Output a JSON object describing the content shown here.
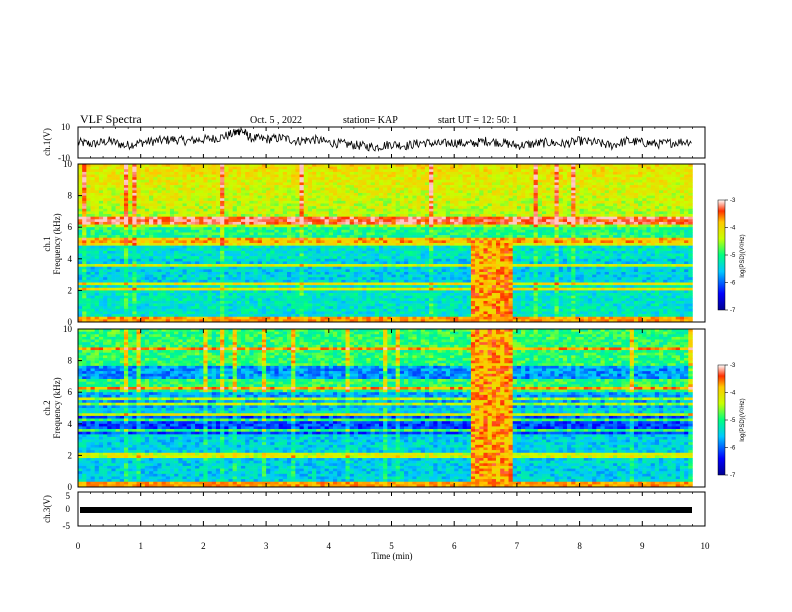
{
  "header": {
    "title": "VLF Spectra",
    "date": "Oct. 5  , 2022",
    "station": "station= KAP",
    "start": "start  UT  =   12: 50: 1"
  },
  "chart_data": [
    {
      "type": "line",
      "panel": "ch1-waveform",
      "ylabel": "ch.1(V)",
      "ylim": [
        -10,
        10
      ],
      "yticks": [
        "10",
        "-10"
      ],
      "xlim": [
        0,
        10
      ],
      "series": [
        {
          "x": [
            0,
            0.25,
            0.5,
            0.75,
            1.0,
            1.25,
            1.5,
            1.75,
            2.0,
            2.25,
            2.5,
            2.6,
            2.75,
            3.0,
            3.25,
            3.5,
            3.75,
            4.0,
            4.25,
            4.5,
            4.75,
            5.0,
            5.25,
            5.5,
            5.75,
            6.0,
            6.25,
            6.5,
            6.75,
            7.0,
            7.25,
            7.5,
            7.75,
            8.0,
            8.25,
            8.5,
            8.75,
            9.0,
            9.25,
            9.5,
            9.8
          ],
          "y": [
            0,
            -1,
            1,
            -2,
            0,
            1,
            2,
            1,
            2,
            3,
            6,
            8,
            3,
            2,
            3,
            1,
            2,
            0,
            -1,
            -2,
            -3,
            -1,
            -2,
            0,
            -1,
            0,
            -1,
            1,
            0,
            -2,
            -1,
            0,
            -1,
            1,
            0,
            -2,
            1,
            0,
            -1,
            0,
            1
          ]
        }
      ]
    },
    {
      "type": "heatmap",
      "panel": "ch1-spectrogram",
      "ylabel": "ch.1\nFrequency  (kHz)",
      "ylim": [
        0,
        10
      ],
      "yticks": [
        "0",
        "2",
        "4",
        "6",
        "8",
        "10"
      ],
      "xlim": [
        0,
        10
      ],
      "colorbar": {
        "label": "log(PSD)(V²/Hz)",
        "range": [
          -7,
          -3
        ],
        "ticks": [
          "-3",
          "-4",
          "-5",
          "-6",
          "-7"
        ]
      },
      "features": {
        "burst_time_min": [
          6.25,
          6.95
        ],
        "burst_band_khz": [
          0.3,
          5.2
        ],
        "strong_lines_khz": [
          0.3,
          2.1,
          2.4,
          3.6,
          5.0,
          5.2,
          6.2,
          6.5
        ]
      }
    },
    {
      "type": "heatmap",
      "panel": "ch2-spectrogram",
      "ylabel": "ch.2\nFrequency  (kHz)",
      "ylim": [
        0,
        10
      ],
      "yticks": [
        "0",
        "2",
        "4",
        "6",
        "8",
        "10"
      ],
      "xlim": [
        0,
        10
      ],
      "colorbar": {
        "label": "log(PSD)(V²/Hz)",
        "range": [
          -7,
          -3
        ],
        "ticks": [
          "-3",
          "-4",
          "-5",
          "-6",
          "-7"
        ]
      },
      "features": {
        "burst_time_min": [
          6.25,
          6.95
        ],
        "burst_band_khz": [
          0.3,
          10
        ],
        "strong_lines_khz": [
          0.3,
          2.0,
          3.6,
          4.3,
          4.6,
          5.2,
          5.6,
          6.2,
          8.8
        ]
      }
    },
    {
      "type": "line",
      "panel": "ch3-waveform",
      "ylabel": "ch.3(V)",
      "ylim": [
        -5,
        5
      ],
      "yticks": [
        "5",
        "0",
        "-5"
      ],
      "xlim": [
        0,
        10
      ],
      "xlabel": "Time  (min)",
      "xticks": [
        "0",
        "1",
        "2",
        "3",
        "4",
        "5",
        "6",
        "7",
        "8",
        "9",
        "10"
      ],
      "series": [
        {
          "x": [
            0,
            9.8
          ],
          "y": [
            -1,
            -1
          ]
        }
      ]
    }
  ]
}
